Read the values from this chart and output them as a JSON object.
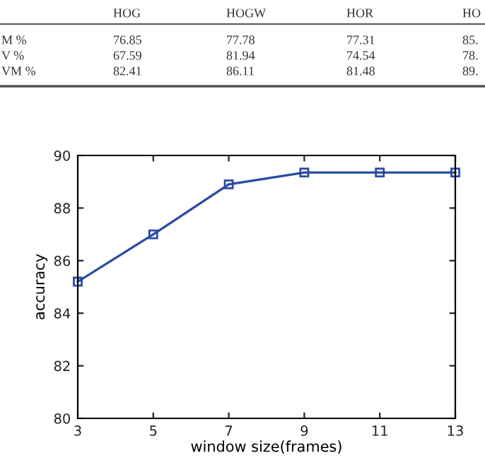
{
  "chart_data": [
    {
      "type": "other",
      "categories": [
        "HOG",
        "HOGW",
        "HOR",
        "HO"
      ],
      "y_categories": [
        "M %",
        "V %",
        "VM %"
      ],
      "cell_labels": [
        [
          "76.85",
          "77.78",
          "77.31",
          "85."
        ],
        [
          "67.59",
          "81.94",
          "74.54",
          "78."
        ],
        [
          "82.41",
          "86.11",
          "81.48",
          "89."
        ]
      ]
    },
    {
      "type": "line",
      "xlabel": "window size(frames)",
      "ylabel": "accuracy",
      "x": [
        3,
        5,
        7,
        9,
        11,
        13
      ],
      "series": [
        {
          "color": "#2b4ba3",
          "values": [
            85.2,
            87.0,
            88.9,
            89.35,
            89.35,
            89.35
          ]
        }
      ],
      "xlim": [
        3,
        13
      ],
      "xticks": [
        3,
        5,
        7,
        9,
        11,
        13
      ],
      "ylim": [
        80,
        90
      ],
      "yticks": [
        80,
        82,
        84,
        86,
        88,
        90
      ],
      "grid": false,
      "marker": "square",
      "line_style": "solid"
    }
  ]
}
